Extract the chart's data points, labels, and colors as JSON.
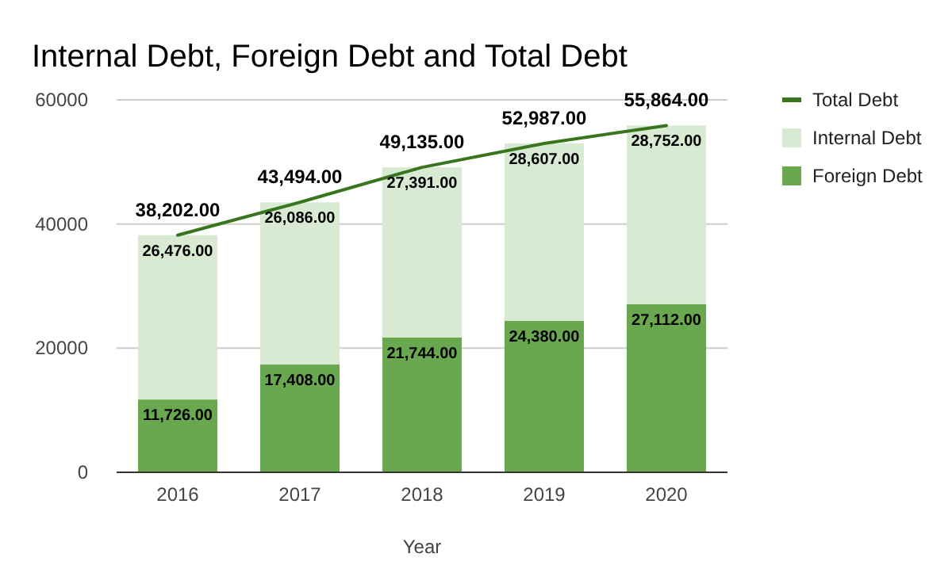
{
  "chart_data": {
    "type": "bar",
    "title": "Internal Debt, Foreign Debt and Total Debt",
    "xlabel": "Year",
    "categories": [
      "2016",
      "2017",
      "2018",
      "2019",
      "2020"
    ],
    "stacked": true,
    "ylim": [
      0,
      60000
    ],
    "yticks": [
      0,
      20000,
      40000,
      60000
    ],
    "grid": "y",
    "legend": "right",
    "series": [
      {
        "name": "Foreign Debt",
        "color": "#6aa84f",
        "values": [
          11726,
          17408,
          21744,
          24380,
          27112
        ],
        "value_labels": [
          "11,726.00",
          "17,408.00",
          "21,744.00",
          "24,380.00",
          "27,112.00"
        ]
      },
      {
        "name": "Internal Debt",
        "color": "#d9ead3",
        "values": [
          26476,
          26086,
          27391,
          28607,
          28752
        ],
        "value_labels": [
          "26,476.00",
          "26,086.00",
          "27,391.00",
          "28,607.00",
          "28,752.00"
        ]
      },
      {
        "name": "Total Debt",
        "type": "line",
        "color": "#38761d",
        "values": [
          38202,
          43494,
          49135,
          52987,
          55864
        ],
        "value_labels": [
          "38,202.00",
          "43,494.00",
          "49,135.00",
          "52,987.00",
          "55,864.00"
        ]
      }
    ]
  }
}
